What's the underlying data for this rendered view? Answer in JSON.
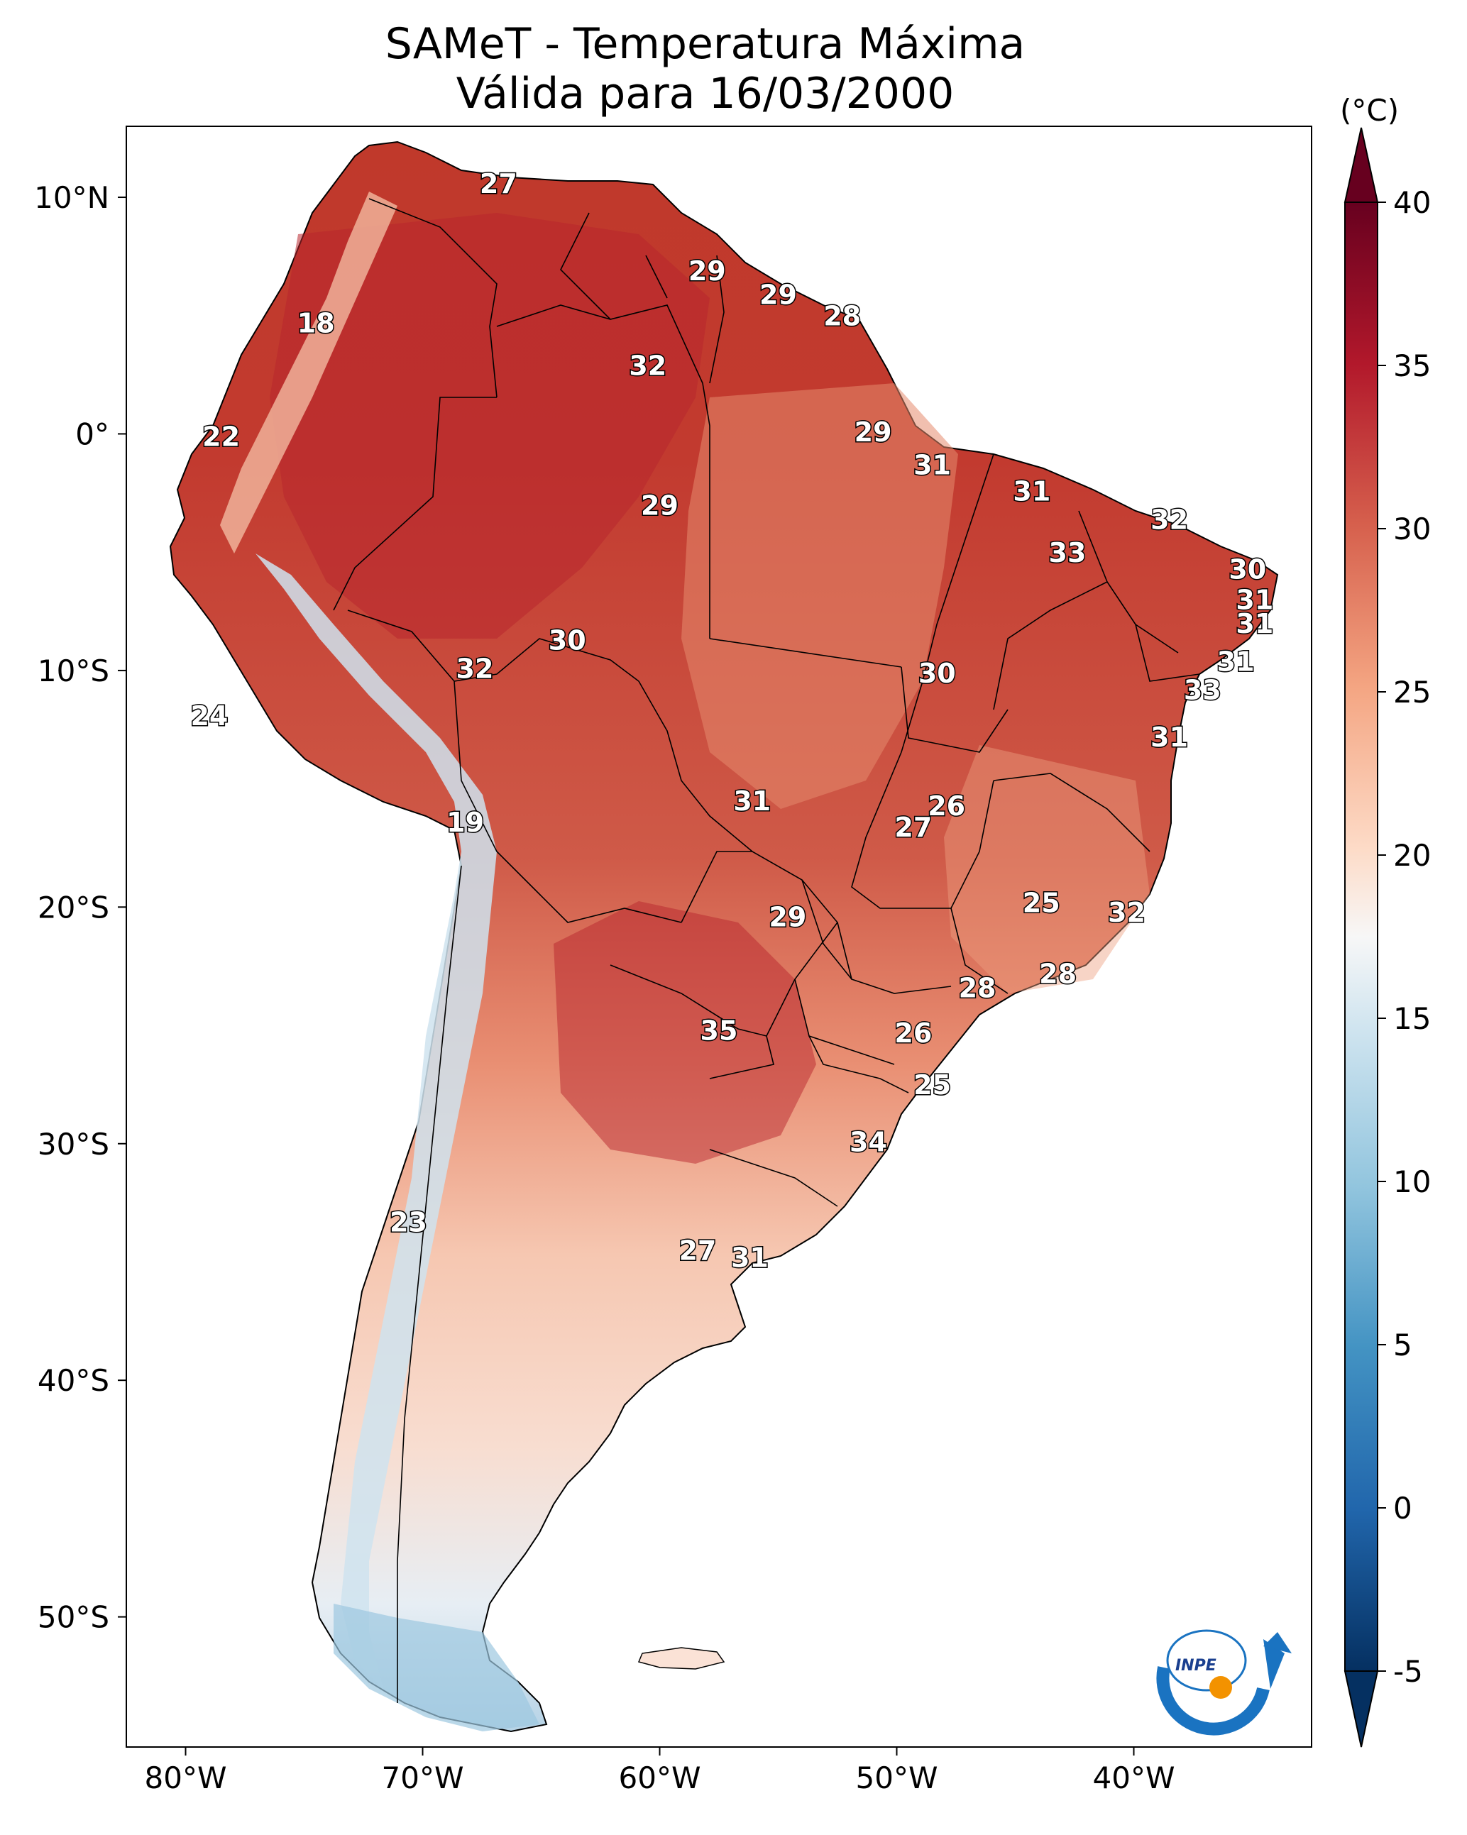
{
  "title": {
    "line1": "SAMeT - Temperatura Máxima",
    "line2": "Válida para 16/03/2000"
  },
  "map": {
    "lon_range": [
      -82.5,
      -32.5
    ],
    "lat_range": [
      -55.5,
      13
    ],
    "lon_ticks": [
      "80°W",
      "70°W",
      "60°W",
      "50°W",
      "40°W"
    ],
    "lat_ticks": [
      "10°N",
      "0°",
      "10°S",
      "20°S",
      "30°S",
      "40°S",
      "50°S"
    ],
    "lon_values": [
      -80,
      -70,
      -60,
      -50,
      -40
    ],
    "lat_values": [
      10,
      0,
      -10,
      -20,
      -30,
      -40,
      -50
    ],
    "colors": {
      "sea": "#ffffff",
      "hot": "#b2182b",
      "warm": "#d6604d",
      "mild": "#f4a582",
      "cool": "#fddbc7",
      "cold": "#92c5de"
    }
  },
  "colorbar": {
    "unit": "(°C)",
    "tick_labels": [
      "40",
      "35",
      "30",
      "25",
      "20",
      "15",
      "10",
      "5",
      "0",
      "-5"
    ],
    "tick_values": [
      40,
      35,
      30,
      25,
      20,
      15,
      10,
      5,
      0,
      -5
    ],
    "range": [
      -5,
      40
    ],
    "colormap": "RdBu_r",
    "extend": "both"
  },
  "station_labels": [
    {
      "text": "27",
      "lon": -66.8,
      "lat": 10.5
    },
    {
      "text": "18",
      "lon": -74.5,
      "lat": 4.6
    },
    {
      "text": "29",
      "lon": -58.0,
      "lat": 6.8
    },
    {
      "text": "29",
      "lon": -55.0,
      "lat": 5.8
    },
    {
      "text": "28",
      "lon": -52.3,
      "lat": 4.9
    },
    {
      "text": "32",
      "lon": -60.5,
      "lat": 2.8
    },
    {
      "text": "22",
      "lon": -78.5,
      "lat": -0.2
    },
    {
      "text": "29",
      "lon": -51.0,
      "lat": 0.0
    },
    {
      "text": "31",
      "lon": -48.5,
      "lat": -1.4
    },
    {
      "text": "29",
      "lon": -60.0,
      "lat": -3.1
    },
    {
      "text": "31",
      "lon": -44.3,
      "lat": -2.5
    },
    {
      "text": "32",
      "lon": -38.5,
      "lat": -3.7
    },
    {
      "text": "33",
      "lon": -42.8,
      "lat": -5.1
    },
    {
      "text": "30",
      "lon": -35.2,
      "lat": -5.8
    },
    {
      "text": "31",
      "lon": -34.9,
      "lat": -7.1
    },
    {
      "text": "31",
      "lon": -34.9,
      "lat": -8.1
    },
    {
      "text": "30",
      "lon": -63.9,
      "lat": -8.8
    },
    {
      "text": "32",
      "lon": -67.8,
      "lat": -10.0
    },
    {
      "text": "30",
      "lon": -48.3,
      "lat": -10.2
    },
    {
      "text": "31",
      "lon": -35.7,
      "lat": -9.7
    },
    {
      "text": "33",
      "lon": -37.1,
      "lat": -10.9
    },
    {
      "text": "24",
      "lon": -79.0,
      "lat": -12.0
    },
    {
      "text": "31",
      "lon": -38.5,
      "lat": -12.9
    },
    {
      "text": "31",
      "lon": -56.1,
      "lat": -15.6
    },
    {
      "text": "26",
      "lon": -47.9,
      "lat": -15.8
    },
    {
      "text": "27",
      "lon": -49.3,
      "lat": -16.7
    },
    {
      "text": "19",
      "lon": -68.2,
      "lat": -16.5
    },
    {
      "text": "29",
      "lon": -54.6,
      "lat": -20.5
    },
    {
      "text": "25",
      "lon": -43.9,
      "lat": -19.9
    },
    {
      "text": "32",
      "lon": -40.3,
      "lat": -20.3
    },
    {
      "text": "28",
      "lon": -46.6,
      "lat": -23.5
    },
    {
      "text": "28",
      "lon": -43.2,
      "lat": -22.9
    },
    {
      "text": "35",
      "lon": -57.5,
      "lat": -25.3
    },
    {
      "text": "26",
      "lon": -49.3,
      "lat": -25.4
    },
    {
      "text": "25",
      "lon": -48.5,
      "lat": -27.6
    },
    {
      "text": "34",
      "lon": -51.2,
      "lat": -30.0
    },
    {
      "text": "23",
      "lon": -70.6,
      "lat": -33.4
    },
    {
      "text": "27",
      "lon": -58.4,
      "lat": -34.6
    },
    {
      "text": "31",
      "lon": -56.2,
      "lat": -34.9
    }
  ],
  "logo": {
    "text": "INPE"
  }
}
